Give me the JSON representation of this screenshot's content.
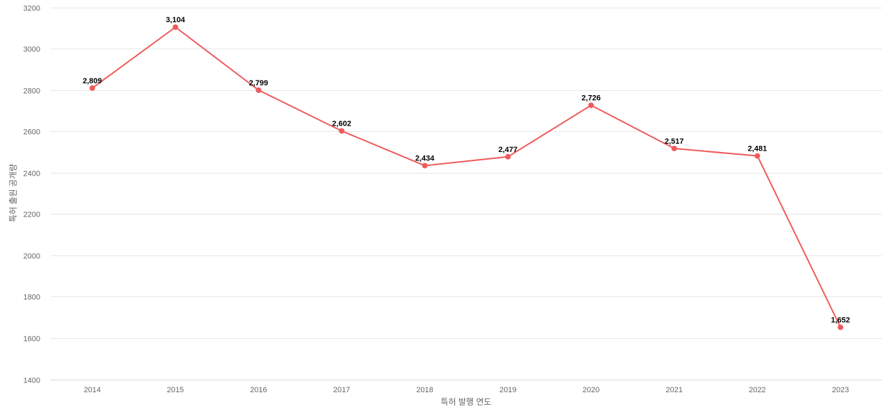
{
  "chart_data": {
    "type": "line",
    "xlabel": "특허 발행 연도",
    "ylabel": "특허 출원 공개량",
    "categories": [
      "2014",
      "2015",
      "2016",
      "2017",
      "2018",
      "2019",
      "2020",
      "2021",
      "2022",
      "2023"
    ],
    "values": [
      2809,
      3104,
      2799,
      2602,
      2434,
      2477,
      2726,
      2517,
      2481,
      1652
    ],
    "data_labels": [
      "2,809",
      "3,104",
      "2,799",
      "2,602",
      "2,434",
      "2,477",
      "2,726",
      "2,517",
      "2,481",
      "1,652"
    ],
    "ylim": [
      1400,
      3200
    ],
    "yticks": [
      "1400",
      "1600",
      "1800",
      "2000",
      "2200",
      "2400",
      "2600",
      "2800",
      "3000",
      "3200"
    ],
    "grid": true,
    "line_color": "#f05a5a"
  }
}
